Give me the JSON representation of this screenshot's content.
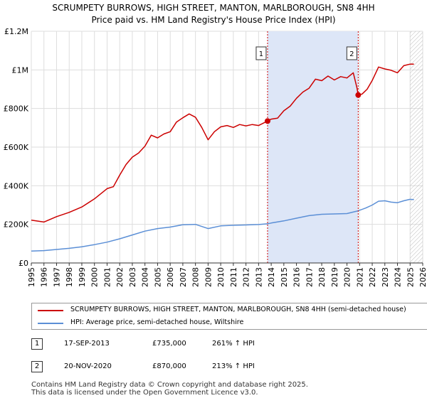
{
  "title_line1": "SCRUMPETY BURROWS, HIGH STREET, MANTON, MARLBOROUGH, SN8 4HH",
  "title_line2": "Price paid vs. HM Land Registry's House Price Index (HPI)",
  "colors": {
    "property": "#cc0000",
    "hpi": "#5b8fd6",
    "shade": "#dde6f7",
    "grid": "#dddddd"
  },
  "chart_data": {
    "type": "line",
    "xlim": [
      1995,
      2026
    ],
    "ylim": [
      0,
      1200000
    ],
    "y_ticks": [
      {
        "value": 0,
        "label": "£0"
      },
      {
        "value": 200000,
        "label": "£200K"
      },
      {
        "value": 400000,
        "label": "£400K"
      },
      {
        "value": 600000,
        "label": "£600K"
      },
      {
        "value": 800000,
        "label": "£800K"
      },
      {
        "value": 1000000,
        "label": "£1M"
      },
      {
        "value": 1200000,
        "label": "£1.2M"
      }
    ],
    "x_ticks": [
      "1995",
      "1996",
      "1997",
      "1998",
      "1999",
      "2000",
      "2001",
      "2002",
      "2003",
      "2004",
      "2005",
      "2006",
      "2007",
      "2008",
      "2009",
      "2010",
      "2011",
      "2012",
      "2013",
      "2014",
      "2015",
      "2016",
      "2017",
      "2018",
      "2019",
      "2020",
      "2021",
      "2022",
      "2023",
      "2024",
      "2025",
      "2026"
    ],
    "shaded_range": [
      2013.71,
      2020.89
    ],
    "hatched_from": 2025.0,
    "series": [
      {
        "name": "SCRUMPETY BURROWS, HIGH STREET, MANTON, MARLBOROUGH, SN8 4HH (semi-detached house)",
        "color": "#cc0000",
        "points": [
          [
            1995.0,
            222000
          ],
          [
            1996.0,
            212000
          ],
          [
            1997.0,
            240000
          ],
          [
            1998.0,
            262000
          ],
          [
            1999.0,
            290000
          ],
          [
            2000.0,
            332000
          ],
          [
            2001.0,
            385000
          ],
          [
            2001.5,
            395000
          ],
          [
            2002.0,
            455000
          ],
          [
            2002.5,
            510000
          ],
          [
            2003.0,
            548000
          ],
          [
            2003.5,
            570000
          ],
          [
            2004.0,
            605000
          ],
          [
            2004.5,
            662000
          ],
          [
            2005.0,
            648000
          ],
          [
            2005.5,
            668000
          ],
          [
            2006.0,
            680000
          ],
          [
            2006.5,
            730000
          ],
          [
            2007.0,
            752000
          ],
          [
            2007.5,
            772000
          ],
          [
            2008.0,
            755000
          ],
          [
            2008.5,
            702000
          ],
          [
            2009.0,
            638000
          ],
          [
            2009.5,
            680000
          ],
          [
            2010.0,
            705000
          ],
          [
            2010.5,
            712000
          ],
          [
            2011.0,
            702000
          ],
          [
            2011.5,
            717000
          ],
          [
            2012.0,
            710000
          ],
          [
            2012.5,
            717000
          ],
          [
            2013.0,
            712000
          ],
          [
            2013.71,
            735000
          ],
          [
            2014.0,
            745000
          ],
          [
            2014.5,
            750000
          ],
          [
            2015.0,
            788000
          ],
          [
            2015.5,
            812000
          ],
          [
            2016.0,
            853000
          ],
          [
            2016.5,
            885000
          ],
          [
            2017.0,
            905000
          ],
          [
            2017.5,
            952000
          ],
          [
            2018.0,
            944000
          ],
          [
            2018.5,
            968000
          ],
          [
            2019.0,
            948000
          ],
          [
            2019.5,
            965000
          ],
          [
            2020.0,
            958000
          ],
          [
            2020.5,
            985000
          ],
          [
            2020.8,
            905000
          ],
          [
            2020.89,
            870000
          ],
          [
            2021.2,
            875000
          ],
          [
            2021.6,
            900000
          ],
          [
            2022.0,
            945000
          ],
          [
            2022.5,
            1015000
          ],
          [
            2023.0,
            1005000
          ],
          [
            2023.5,
            998000
          ],
          [
            2024.0,
            985000
          ],
          [
            2024.5,
            1022000
          ],
          [
            2025.0,
            1030000
          ],
          [
            2025.3,
            1030000
          ]
        ]
      },
      {
        "name": "HPI: Average price, semi-detached house, Wiltshire",
        "color": "#5b8fd6",
        "points": [
          [
            1995.0,
            62000
          ],
          [
            1996.0,
            64000
          ],
          [
            1997.0,
            70000
          ],
          [
            1998.0,
            76000
          ],
          [
            1999.0,
            84000
          ],
          [
            2000.0,
            95000
          ],
          [
            2001.0,
            108000
          ],
          [
            2002.0,
            125000
          ],
          [
            2003.0,
            145000
          ],
          [
            2004.0,
            165000
          ],
          [
            2005.0,
            178000
          ],
          [
            2006.0,
            186000
          ],
          [
            2007.0,
            198000
          ],
          [
            2008.0,
            200000
          ],
          [
            2009.0,
            178000
          ],
          [
            2010.0,
            192000
          ],
          [
            2011.0,
            195000
          ],
          [
            2012.0,
            197000
          ],
          [
            2013.0,
            199000
          ],
          [
            2013.71,
            203000
          ],
          [
            2014.0,
            207000
          ],
          [
            2015.0,
            218000
          ],
          [
            2016.0,
            232000
          ],
          [
            2017.0,
            245000
          ],
          [
            2018.0,
            252000
          ],
          [
            2019.0,
            254000
          ],
          [
            2020.0,
            256000
          ],
          [
            2020.89,
            270000
          ],
          [
            2021.5,
            285000
          ],
          [
            2022.0,
            300000
          ],
          [
            2022.5,
            320000
          ],
          [
            2023.0,
            322000
          ],
          [
            2023.5,
            315000
          ],
          [
            2024.0,
            312000
          ],
          [
            2024.5,
            322000
          ],
          [
            2025.0,
            330000
          ],
          [
            2025.3,
            328000
          ]
        ]
      }
    ],
    "sales": [
      {
        "label": "1",
        "x": 2013.71,
        "y": 735000
      },
      {
        "label": "2",
        "x": 2020.89,
        "y": 870000
      }
    ]
  },
  "legend": [
    {
      "label": "SCRUMPETY BURROWS, HIGH STREET, MANTON, MARLBOROUGH, SN8 4HH (semi-detached house)",
      "color": "#cc0000"
    },
    {
      "label": "HPI: Average price, semi-detached house, Wiltshire",
      "color": "#5b8fd6"
    }
  ],
  "sales_table": [
    {
      "num": "1",
      "date": "17-SEP-2013",
      "price": "£735,000",
      "hpi": "261% ↑ HPI"
    },
    {
      "num": "2",
      "date": "20-NOV-2020",
      "price": "£870,000",
      "hpi": "213% ↑ HPI"
    }
  ],
  "footer_line1": "Contains HM Land Registry data © Crown copyright and database right 2025.",
  "footer_line2": "This data is licensed under the Open Government Licence v3.0."
}
